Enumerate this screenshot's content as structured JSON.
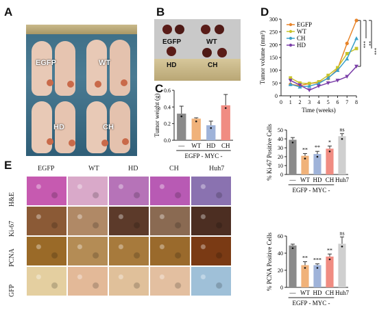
{
  "panels": {
    "a": "A",
    "b": "B",
    "c": "C",
    "d": "D",
    "e": "E"
  },
  "panel_a": {
    "labels": [
      "EGFP",
      "WT",
      "HD",
      "CH"
    ]
  },
  "panel_b": {
    "labels": [
      "EGFP",
      "WT",
      "HD",
      "CH"
    ]
  },
  "panel_c": {
    "ylabel": "Tumor weight (g)",
    "group": "EGFP - MYC -"
  },
  "panel_d": {
    "ylabel": "Tumor volume (mm³)",
    "xlabel": "Time (weeks)",
    "sig": [
      "***",
      "**",
      "***"
    ]
  },
  "panel_e": {
    "columns": [
      "EGFP",
      "WT",
      "HD",
      "CH",
      "Huh7"
    ],
    "rows": [
      "H&E",
      "Ki-67",
      "PCNA",
      "GFP"
    ]
  },
  "ki67": {
    "ylabel": "% Ki-67 Positive Cells",
    "group": "EGFP - MYC -"
  },
  "pcna": {
    "ylabel": "% PCNA Positive Cells",
    "group": "EGFP - MYC -"
  },
  "colors": {
    "EGFP": "#8a8a8a",
    "WT": "#f0b27a",
    "HD": "#9fb3d9",
    "CH": "#f08c82",
    "Huh7": "#cfcfcf",
    "lineEGFP": "#e8842a",
    "lineWT": "#c8c32a",
    "lineCH": "#3aa0c8",
    "lineHD": "#7a3ea8"
  },
  "chart_data": [
    {
      "type": "bar",
      "panel": "C",
      "categories": [
        "—",
        "WT",
        "HD",
        "CH"
      ],
      "values": [
        0.32,
        0.26,
        0.18,
        0.42
      ],
      "errors": [
        0.09,
        0.01,
        0.05,
        0.13
      ],
      "ylabel": "Tumor weight (g)",
      "ylim": [
        0,
        0.6
      ],
      "yticks": [
        0.0,
        0.2,
        0.4,
        0.6
      ],
      "group_label": "EGFP - MYC -"
    },
    {
      "type": "line",
      "panel": "D",
      "x": [
        1,
        2,
        3,
        4,
        5,
        6,
        7,
        8
      ],
      "xlabel": "Time (weeks)",
      "ylabel": "Tumor volume (mm³)",
      "ylim": [
        0,
        300
      ],
      "yticks": [
        0,
        50,
        100,
        150,
        200,
        250,
        300
      ],
      "series": [
        {
          "name": "EGFP",
          "values": [
            45,
            40,
            48,
            52,
            68,
            105,
            205,
            295
          ]
        },
        {
          "name": "WT",
          "values": [
            70,
            50,
            48,
            55,
            80,
            110,
            165,
            185
          ]
        },
        {
          "name": "CH",
          "values": [
            45,
            35,
            38,
            48,
            70,
            100,
            145,
            225
          ]
        },
        {
          "name": "HD",
          "values": [
            60,
            42,
            22,
            38,
            50,
            60,
            75,
            115
          ]
        }
      ],
      "legend": "top-left",
      "significance": [
        "***",
        "**",
        "***"
      ]
    },
    {
      "type": "bar",
      "panel": "Ki-67",
      "categories": [
        "—",
        "WT",
        "HD",
        "CH",
        "Huh7"
      ],
      "values": [
        39,
        21,
        23,
        29,
        43
      ],
      "errors": [
        2.5,
        2.5,
        3,
        3,
        3
      ],
      "ylabel": "% Ki-67 Positive Cells",
      "ylim": [
        0,
        50
      ],
      "yticks": [
        0,
        10,
        20,
        30,
        40,
        50
      ],
      "stars": [
        "",
        "**",
        "**",
        "*",
        "ns"
      ],
      "group_label": "EGFP - MYC -"
    },
    {
      "type": "bar",
      "panel": "PCNA",
      "categories": [
        "—",
        "WT",
        "HD",
        "CH",
        "Huh7"
      ],
      "values": [
        49,
        26,
        26,
        36,
        51
      ],
      "errors": [
        1.5,
        4,
        1.5,
        3,
        8
      ],
      "ylabel": "% PCNA Positive Cells",
      "ylim": [
        0,
        60
      ],
      "yticks": [
        0,
        20,
        40,
        60
      ],
      "stars": [
        "",
        "**",
        "***",
        "**",
        "ns"
      ],
      "group_label": "EGFP - MYC -"
    }
  ]
}
